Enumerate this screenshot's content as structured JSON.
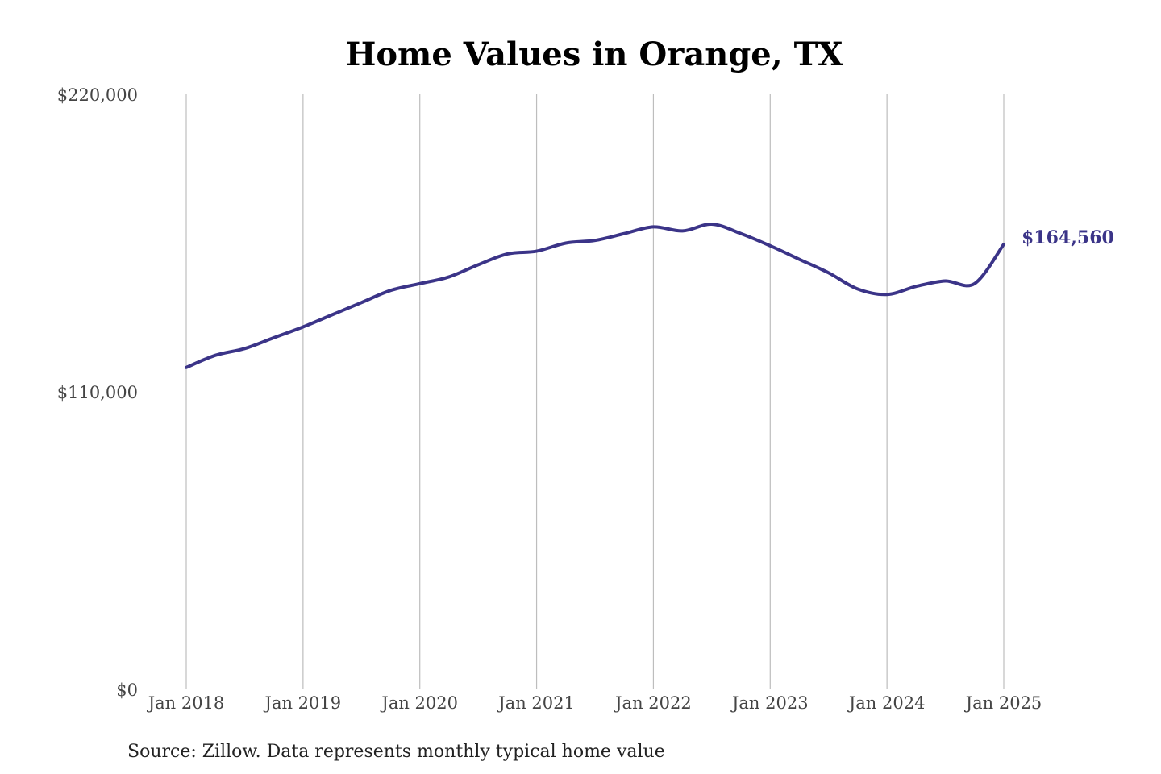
{
  "chart_data": {
    "type": "line",
    "title": "Home Values in Orange, TX",
    "xlabel": "",
    "ylabel": "",
    "ylim": [
      0,
      220000
    ],
    "y_ticks": [
      {
        "value": 0,
        "label": "$0"
      },
      {
        "value": 110000,
        "label": "$110,000"
      },
      {
        "value": 220000,
        "label": "$220,000"
      }
    ],
    "x_ticks": [
      {
        "value": 2018,
        "label": "Jan 2018"
      },
      {
        "value": 2019,
        "label": "Jan 2019"
      },
      {
        "value": 2020,
        "label": "Jan 2020"
      },
      {
        "value": 2021,
        "label": "Jan 2021"
      },
      {
        "value": 2022,
        "label": "Jan 2022"
      },
      {
        "value": 2023,
        "label": "Jan 2023"
      },
      {
        "value": 2024,
        "label": "Jan 2024"
      },
      {
        "value": 2025,
        "label": "Jan 2025"
      }
    ],
    "xlim": [
      2018,
      2025
    ],
    "grid": "vertical",
    "color": "#3b3488",
    "series": [
      {
        "x": [
          "2018-01",
          "2018-04",
          "2018-07",
          "2018-10",
          "2019-01",
          "2019-04",
          "2019-07",
          "2019-10",
          "2020-01",
          "2020-04",
          "2020-07",
          "2020-10",
          "2021-01",
          "2021-04",
          "2021-07",
          "2021-10",
          "2022-01",
          "2022-04",
          "2022-07",
          "2022-10",
          "2023-01",
          "2023-04",
          "2023-07",
          "2023-10",
          "2024-01",
          "2024-04",
          "2024-07",
          "2024-10",
          "2025-01"
        ],
        "y": [
          119000,
          123500,
          126000,
          130000,
          134000,
          138500,
          143000,
          147500,
          150000,
          152500,
          157000,
          161000,
          162000,
          165000,
          166000,
          168500,
          171000,
          169500,
          172000,
          168500,
          164000,
          159000,
          154000,
          148000,
          146000,
          149000,
          151000,
          150000,
          164560
        ]
      }
    ],
    "end_label": "$164,560",
    "source": "Source: Zillow. Data represents monthly typical home value"
  }
}
